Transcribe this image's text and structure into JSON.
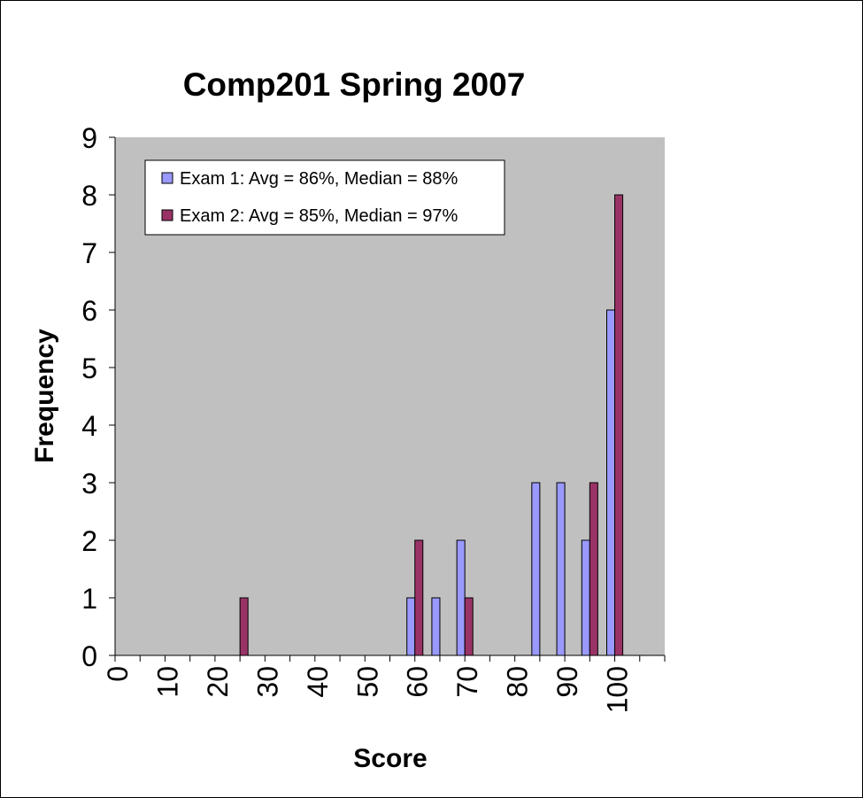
{
  "chart_data": {
    "type": "bar",
    "title": "Comp201 Spring 2007",
    "xlabel": "Score",
    "ylabel": "Frequency",
    "ylim": [
      0,
      9
    ],
    "yticks": [
      "0",
      "1",
      "2",
      "3",
      "4",
      "5",
      "6",
      "7",
      "8",
      "9"
    ],
    "xlim": [
      0,
      110
    ],
    "xticks": [
      "0",
      "10",
      "20",
      "30",
      "40",
      "50",
      "60",
      "70",
      "80",
      "90",
      "100"
    ],
    "plot_background": "#c0c0c0",
    "grid": false,
    "legend_position": "top-left",
    "series": [
      {
        "name": "Exam 1: Avg = 86%, Median = 88%",
        "color": "#9999ff",
        "points": [
          {
            "x": 60,
            "y": 1
          },
          {
            "x": 65,
            "y": 1
          },
          {
            "x": 70,
            "y": 2
          },
          {
            "x": 85,
            "y": 3
          },
          {
            "x": 90,
            "y": 3
          },
          {
            "x": 95,
            "y": 2
          },
          {
            "x": 100,
            "y": 6
          }
        ]
      },
      {
        "name": "Exam 2: Avg = 85%, Median = 97%",
        "color": "#993366",
        "points": [
          {
            "x": 25,
            "y": 1
          },
          {
            "x": 60,
            "y": 2
          },
          {
            "x": 70,
            "y": 1
          },
          {
            "x": 95,
            "y": 3
          },
          {
            "x": 100,
            "y": 8
          }
        ]
      }
    ]
  }
}
